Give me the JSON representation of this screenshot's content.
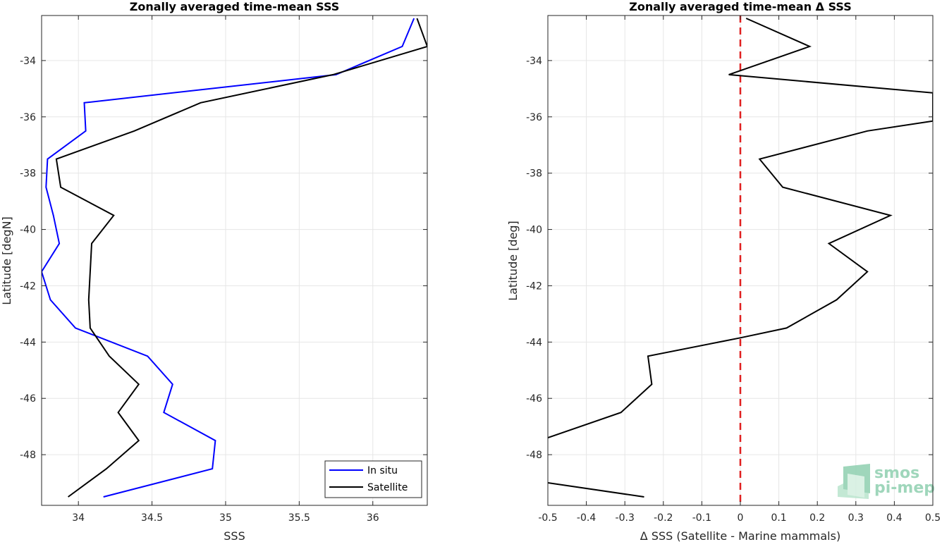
{
  "chart_data": [
    {
      "type": "line",
      "title": "Zonally averaged time-mean SSS",
      "xlabel": "SSS",
      "ylabel": "Latitude [degN]",
      "xlim": [
        33.75,
        36.37
      ],
      "ylim": [
        -49.8,
        -32.4
      ],
      "xticks": [
        34,
        34.5,
        35,
        35.5,
        36
      ],
      "xtick_labels": [
        "34",
        "34.5",
        "35",
        "35.5",
        "36"
      ],
      "yticks": [
        -48,
        -46,
        -44,
        -42,
        -40,
        -38,
        -36,
        -34
      ],
      "ytick_labels": [
        "-48",
        "-46",
        "-44",
        "-42",
        "-40",
        "-38",
        "-36",
        "-34"
      ],
      "grid": true,
      "legend": "bottom-right",
      "series": [
        {
          "name": "In situ",
          "color": "#0000ff",
          "x": [
            34.17,
            34.91,
            34.93,
            34.58,
            34.64,
            34.47,
            33.98,
            33.81,
            33.75,
            33.87,
            33.83,
            33.78,
            33.79,
            34.05,
            34.04,
            35.75,
            36.2,
            36.28
          ],
          "y": [
            -49.5,
            -48.5,
            -47.5,
            -46.5,
            -45.5,
            -44.5,
            -43.5,
            -42.5,
            -41.5,
            -40.5,
            -39.5,
            -38.5,
            -37.5,
            -36.5,
            -35.5,
            -34.5,
            -33.5,
            -32.5
          ]
        },
        {
          "name": "Satellite",
          "color": "#000000",
          "x": [
            33.93,
            34.19,
            34.41,
            34.27,
            34.41,
            34.21,
            34.08,
            34.07,
            34.08,
            34.09,
            34.24,
            33.88,
            33.85,
            34.38,
            34.83,
            35.73,
            36.37,
            36.3
          ],
          "y": [
            -49.5,
            -48.5,
            -47.5,
            -46.5,
            -45.5,
            -44.5,
            -43.5,
            -42.5,
            -41.5,
            -40.5,
            -39.5,
            -38.5,
            -37.5,
            -36.5,
            -35.5,
            -34.5,
            -33.5,
            -32.5
          ]
        }
      ]
    },
    {
      "type": "line",
      "title": "Zonally averaged time-mean Δ SSS",
      "xlabel": "Δ SSS (Satellite - Marine mammals)",
      "ylabel": "Latitude [deg]",
      "xlim": [
        -0.5,
        0.5
      ],
      "ylim": [
        -49.8,
        -32.4
      ],
      "xticks": [
        -0.5,
        -0.4,
        -0.3,
        -0.2,
        -0.1,
        0,
        0.1,
        0.2,
        0.3,
        0.4,
        0.5
      ],
      "xtick_labels": [
        "-0.5",
        "-0.4",
        "-0.3",
        "-0.2",
        "-0.1",
        "0",
        "0.1",
        "0.2",
        "0.3",
        "0.4",
        "0.5"
      ],
      "yticks": [
        -48,
        -46,
        -44,
        -42,
        -40,
        -38,
        -36,
        -34
      ],
      "ytick_labels": [
        "-48",
        "-46",
        "-44",
        "-42",
        "-40",
        "-38",
        "-36",
        "-34"
      ],
      "grid": true,
      "reference_line": {
        "x": 0,
        "color": "#e02020",
        "style": "dashed"
      },
      "series": [
        {
          "color": "#000000",
          "x": [
            -0.25,
            -0.5
          ],
          "y": [
            -49.5,
            -49.0
          ]
        },
        {
          "color": "#000000",
          "x": [
            -0.5,
            -0.31,
            -0.23,
            -0.24,
            0.0,
            0.12,
            0.25,
            0.33,
            0.23,
            0.39,
            0.11,
            0.05,
            0.33,
            0.5,
            0.5,
            -0.03,
            0.18,
            0.015
          ],
          "y": [
            -47.4,
            -46.5,
            -45.5,
            -44.5,
            -43.85,
            -43.5,
            -42.5,
            -41.5,
            -40.5,
            -39.5,
            -38.5,
            -37.5,
            -36.5,
            -36.15,
            -35.15,
            -34.5,
            -33.5,
            -32.5
          ]
        }
      ]
    }
  ],
  "logo": {
    "line1": "smos",
    "line2": "pi-mep"
  }
}
